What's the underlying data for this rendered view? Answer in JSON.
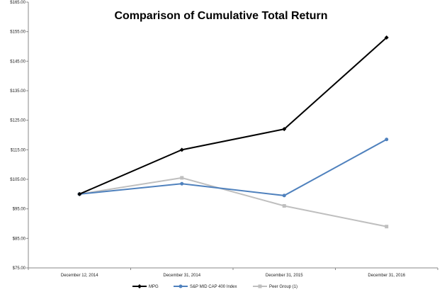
{
  "chart_data": {
    "type": "line",
    "title": "Comparison of Cumulative Total Return",
    "xlabel": "",
    "ylabel": "",
    "categories": [
      "December 12, 2014",
      "December 31, 2014",
      "December 31, 2015",
      "December 31, 2016"
    ],
    "y_ticks": [
      "$75.00",
      "$85.00",
      "$95.00",
      "$105.00",
      "$115.00",
      "$125.00",
      "$135.00",
      "$145.00",
      "$155.00",
      "$165.00"
    ],
    "ylim": [
      75,
      165
    ],
    "grid": false,
    "legend_position": "bottom",
    "series": [
      {
        "name": "MPG",
        "color": "#000000",
        "marker": "diamond",
        "values": [
          100.0,
          115.0,
          122.0,
          153.0
        ]
      },
      {
        "name": "S&P MID CAP 400 Index",
        "color": "#4f81bd",
        "marker": "circle",
        "values": [
          100.0,
          103.5,
          99.5,
          118.5
        ]
      },
      {
        "name": "Peer Group (1)",
        "color": "#bfbfbf",
        "marker": "square",
        "values": [
          100.0,
          105.5,
          96.0,
          89.0
        ]
      }
    ]
  }
}
